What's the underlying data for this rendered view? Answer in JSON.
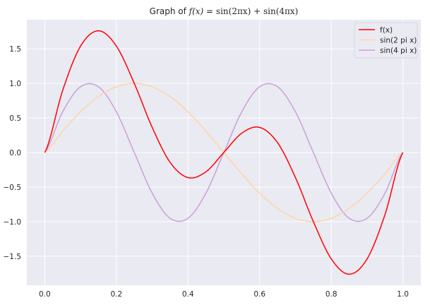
{
  "chart_data": {
    "type": "line",
    "title": "Graph of f(x) = sin(2πx) + sin(4πx)",
    "title_parts": {
      "prefix": "Graph of ",
      "lhs": "f(x)",
      "eq": " = ",
      "rhs": "sin(2πx) + sin(4πx)"
    },
    "xlabel": "",
    "ylabel": "",
    "xlim": [
      -0.05,
      1.05
    ],
    "ylim": [
      -1.92,
      1.92
    ],
    "x_ticks": [
      0.0,
      0.2,
      0.4,
      0.6,
      0.8,
      1.0
    ],
    "x_tick_labels": [
      "0.0",
      "0.2",
      "0.4",
      "0.6",
      "0.8",
      "1.0"
    ],
    "y_ticks": [
      1.5,
      1.0,
      0.5,
      0.0,
      -0.5,
      -1.0,
      -1.5
    ],
    "y_tick_labels": [
      "1.5",
      "1.0",
      "0.5",
      "0.0",
      "−0.5",
      "−1.0",
      "−1.5"
    ],
    "grid": true,
    "background": "#eaeaf2",
    "grid_color": "#ffffff",
    "legend_placement": "top-right",
    "series": [
      {
        "name": "f(x)",
        "color": "#ff0000",
        "x": [
          0.0,
          0.05,
          0.1,
          0.15,
          0.2,
          0.25,
          0.3,
          0.35,
          0.4,
          0.45,
          0.5,
          0.55,
          0.6,
          0.65,
          0.7,
          0.75,
          0.8,
          0.85,
          0.9,
          0.95,
          1.0
        ],
        "y": [
          0.0,
          0.897,
          1.539,
          1.76,
          1.539,
          1.0,
          0.363,
          -0.142,
          -0.363,
          -0.279,
          0.0,
          0.279,
          0.363,
          0.142,
          -0.363,
          -1.0,
          -1.539,
          -1.76,
          -1.539,
          -0.897,
          0.0
        ]
      },
      {
        "name": "sin(2 pi x)",
        "color": "#fcd5a8",
        "x": [
          0.0,
          0.05,
          0.1,
          0.15,
          0.2,
          0.25,
          0.3,
          0.35,
          0.4,
          0.45,
          0.5,
          0.55,
          0.6,
          0.65,
          0.7,
          0.75,
          0.8,
          0.85,
          0.9,
          0.95,
          1.0
        ],
        "y": [
          0.0,
          0.309,
          0.588,
          0.809,
          0.951,
          1.0,
          0.951,
          0.809,
          0.588,
          0.309,
          0.0,
          -0.309,
          -0.588,
          -0.809,
          -0.951,
          -1.0,
          -0.951,
          -0.809,
          -0.588,
          -0.309,
          0.0
        ]
      },
      {
        "name": "sin(4 pi x)",
        "color": "#cba0d6",
        "x": [
          0.0,
          0.05,
          0.1,
          0.15,
          0.2,
          0.25,
          0.3,
          0.35,
          0.4,
          0.45,
          0.5,
          0.55,
          0.6,
          0.65,
          0.7,
          0.75,
          0.8,
          0.85,
          0.9,
          0.95,
          1.0
        ],
        "y": [
          0.0,
          0.588,
          0.951,
          0.951,
          0.588,
          0.0,
          -0.588,
          -0.951,
          -0.951,
          -0.588,
          0.0,
          0.588,
          0.951,
          0.951,
          0.588,
          0.0,
          -0.588,
          -0.951,
          -0.951,
          -0.588,
          0.0
        ]
      }
    ]
  }
}
